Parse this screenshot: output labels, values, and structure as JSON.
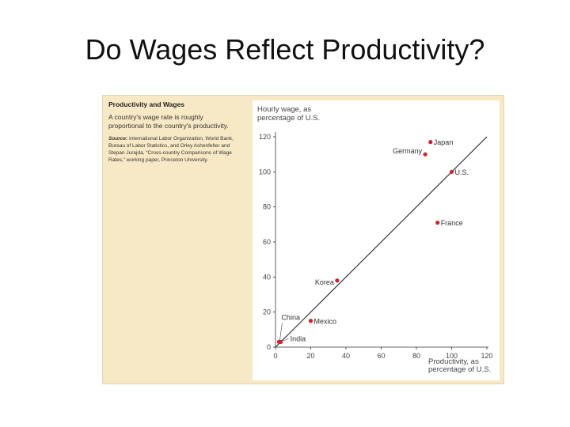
{
  "slide": {
    "title": "Do Wages Reflect Productivity?"
  },
  "caption": {
    "heading": "Productivity and Wages",
    "body": "A country's wage rate is roughly proportional to the country's productivity.",
    "source_label": "Source:",
    "source_text": "International Labor Organization, World Bank, Bureau of Labor Statistics, and Orley Ashenfelter and Stepan Jurajda, “Cross-country Comparisons of Wage Rates,” working paper, Princeton University."
  },
  "colors": {
    "point": "#d61f2c",
    "line": "#222222",
    "panel_bg": "#f8e9c6"
  },
  "chart_data": {
    "type": "scatter",
    "title": "",
    "ylabel_lines": [
      "Hourly wage, as",
      "percentage of U.S."
    ],
    "xlabel_lines": [
      "Productivity, as",
      "percentage of U.S."
    ],
    "xlim": [
      0,
      120
    ],
    "ylim": [
      0,
      120
    ],
    "xticks": [
      0,
      20,
      40,
      60,
      80,
      100,
      120
    ],
    "yticks": [
      0,
      20,
      40,
      60,
      80,
      100,
      120
    ],
    "grid": false,
    "reference_line": {
      "from": [
        0,
        0
      ],
      "to": [
        120,
        120
      ]
    },
    "points": [
      {
        "label": "Japan",
        "x": 88,
        "y": 117,
        "label_pos": "right"
      },
      {
        "label": "Germany",
        "x": 85,
        "y": 110,
        "label_pos": "left-above"
      },
      {
        "label": "U.S.",
        "x": 100,
        "y": 100,
        "label_pos": "right"
      },
      {
        "label": "France",
        "x": 92,
        "y": 71,
        "label_pos": "right"
      },
      {
        "label": "Korea",
        "x": 35,
        "y": 38,
        "label_pos": "left-below"
      },
      {
        "label": "Mexico",
        "x": 20,
        "y": 15,
        "label_pos": "right"
      },
      {
        "label": "China",
        "x": 2,
        "y": 3,
        "label_pos": "above-leader"
      },
      {
        "label": "India",
        "x": 3,
        "y": 3,
        "label_pos": "right-leader"
      }
    ]
  }
}
